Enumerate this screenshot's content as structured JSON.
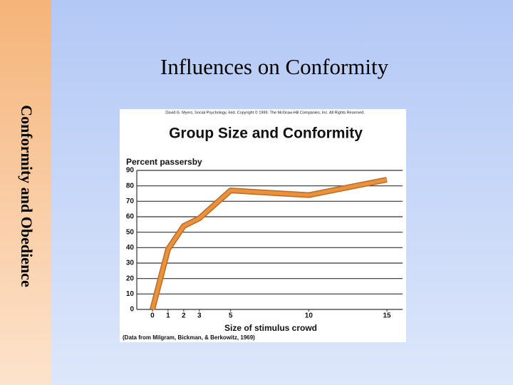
{
  "slide": {
    "title": "Influences on Conformity",
    "sidebar": "Conformity and Obedience"
  },
  "chart_data": {
    "type": "line",
    "copyright": "David G. Myers, Social Psychology, 6ed. Copyright © 1999. The McGraw-Hill Companies, Inc. All Rights Reserved.",
    "title": "Group Size and Conformity",
    "y_label": "Percent passersby",
    "x_label": "Size of stimulus crowd",
    "source": "(Data from Milgram, Bickman, & Berkowitz, 1969)",
    "x": [
      0,
      1,
      2,
      3,
      5,
      10,
      15
    ],
    "values": [
      0,
      39,
      54,
      59,
      77,
      74,
      84
    ],
    "color": "#e8923e",
    "xlim": [
      -1,
      16
    ],
    "xticks": [
      0,
      1,
      2,
      3,
      5,
      10,
      15
    ],
    "ylim": [
      0,
      90
    ],
    "yticks": [
      0,
      10,
      20,
      30,
      40,
      50,
      60,
      70,
      80,
      90
    ],
    "grid": true
  }
}
